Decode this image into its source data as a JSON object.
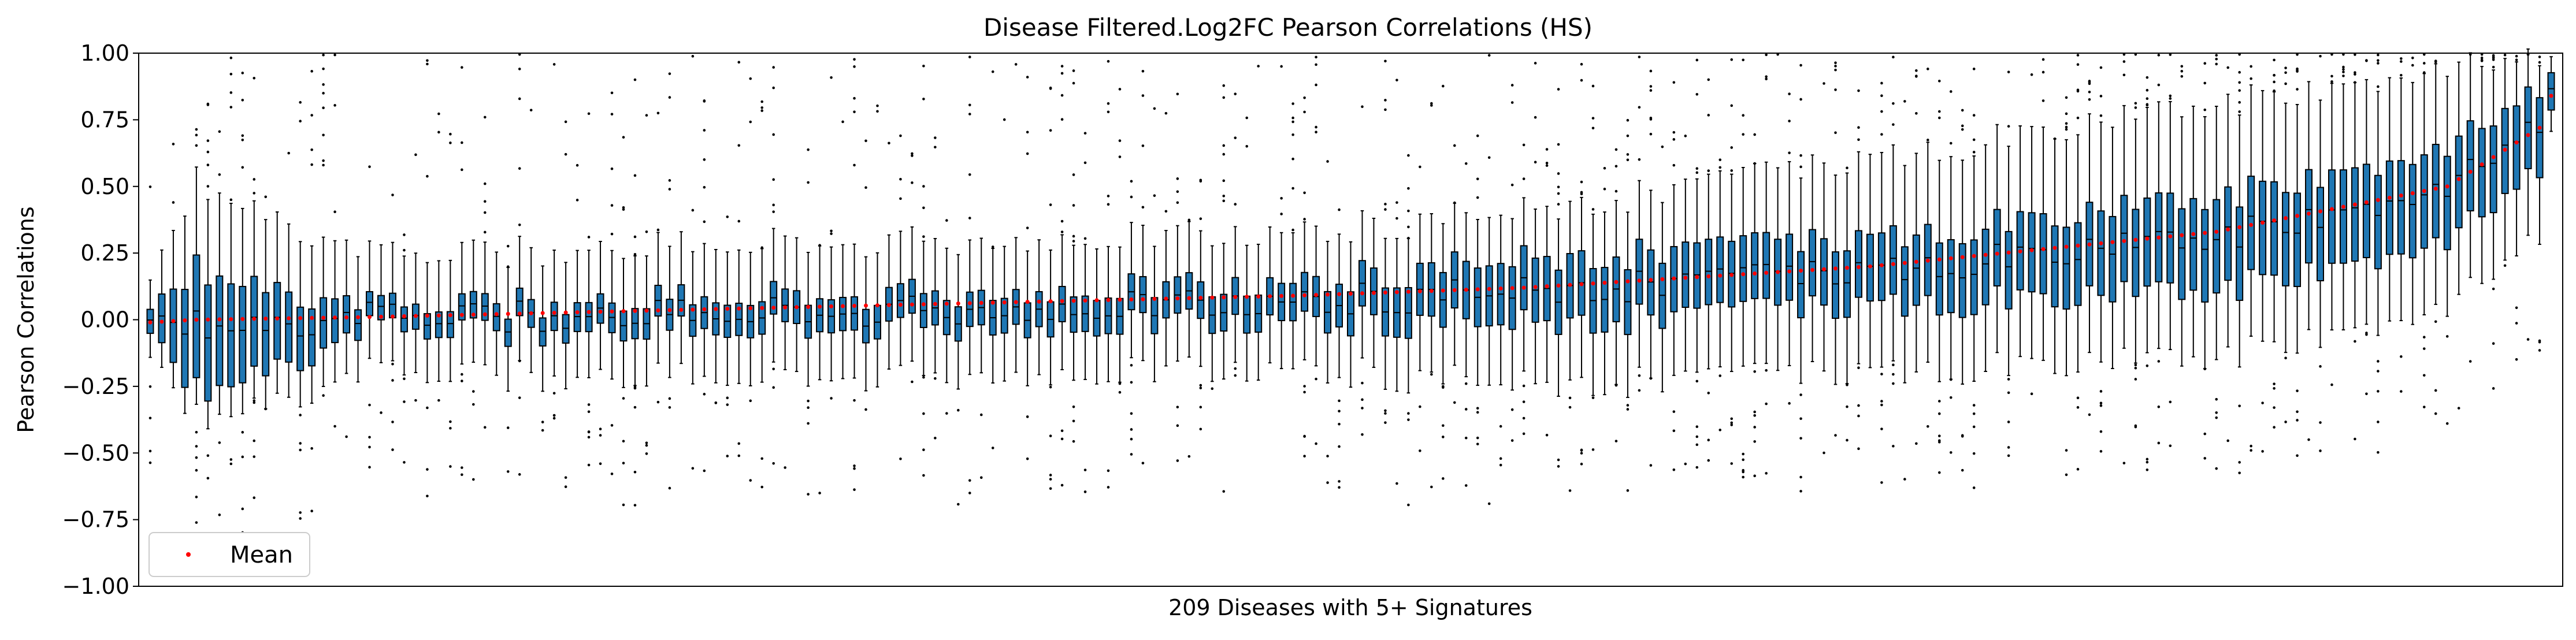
{
  "chart_data": {
    "type": "box",
    "title": "Disease Filtered.Log2FC Pearson Correlations (HS)",
    "xlabel": "209 Diseases with 5+ Signatures",
    "ylabel": "Pearson Correlations",
    "ylim": [
      -1.0,
      1.0
    ],
    "yticks": [
      "−1.00",
      "−0.75",
      "−0.50",
      "−0.25",
      "0.00",
      "0.25",
      "0.50",
      "0.75",
      "1.00"
    ],
    "ytick_values": [
      -1.0,
      -0.75,
      -0.5,
      -0.25,
      0.0,
      0.25,
      0.5,
      0.75,
      1.0
    ],
    "n_boxes": 209,
    "sorted_by": "mean ascending",
    "mean_range": [
      -0.01,
      0.84
    ],
    "sampled_box_stats": [
      {
        "index": 1,
        "q1": -0.05,
        "median": 0.0,
        "q3": 0.04,
        "whisker_low": -0.14,
        "whisker_high": 0.15,
        "mean": -0.01
      },
      {
        "index": 5,
        "q1": -0.27,
        "median": -0.02,
        "q3": 0.19,
        "whisker_low": -0.37,
        "whisker_high": 0.52,
        "mean": 0.0
      },
      {
        "index": 20,
        "q1": -0.04,
        "median": 0.01,
        "q3": 0.05,
        "whisker_low": -0.2,
        "whisker_high": 0.24,
        "mean": 0.01
      },
      {
        "index": 50,
        "q1": -0.04,
        "median": 0.02,
        "q3": 0.08,
        "whisker_low": -0.22,
        "whisker_high": 0.28,
        "mean": 0.04
      },
      {
        "index": 100,
        "q1": 0.0,
        "median": 0.07,
        "q3": 0.14,
        "whisker_low": -0.18,
        "whisker_high": 0.33,
        "mean": 0.09
      },
      {
        "index": 120,
        "q1": -0.02,
        "median": 0.1,
        "q3": 0.22,
        "whisker_low": -0.25,
        "whisker_high": 0.4,
        "mean": 0.12
      },
      {
        "index": 150,
        "q1": 0.05,
        "median": 0.18,
        "q3": 0.3,
        "whisker_low": -0.2,
        "whisker_high": 0.6,
        "mean": 0.2
      },
      {
        "index": 180,
        "q1": 0.1,
        "median": 0.3,
        "q3": 0.45,
        "whisker_low": -0.15,
        "whisker_high": 0.8,
        "mean": 0.33
      },
      {
        "index": 200,
        "q1": 0.3,
        "median": 0.5,
        "q3": 0.65,
        "whisker_low": 0.05,
        "whisker_high": 0.95,
        "mean": 0.5
      },
      {
        "index": 208,
        "q1": 0.55,
        "median": 0.72,
        "q3": 0.85,
        "whisker_low": 0.3,
        "whisker_high": 0.97,
        "mean": 0.72
      },
      {
        "index": 209,
        "q1": 0.78,
        "median": 0.86,
        "q3": 0.92,
        "whisker_low": 0.7,
        "whisker_high": 0.98,
        "mean": 0.84
      }
    ],
    "legend": {
      "placement": "lower-left",
      "entries": [
        {
          "label": "Mean",
          "marker": "dot",
          "color": "#ff0000"
        }
      ]
    },
    "grid": false,
    "colors": {
      "box_fill": "#1f77b4",
      "box_edge": "#000000",
      "median": "#000000",
      "mean_marker": "#ff0000",
      "outliers": "#000000"
    }
  }
}
